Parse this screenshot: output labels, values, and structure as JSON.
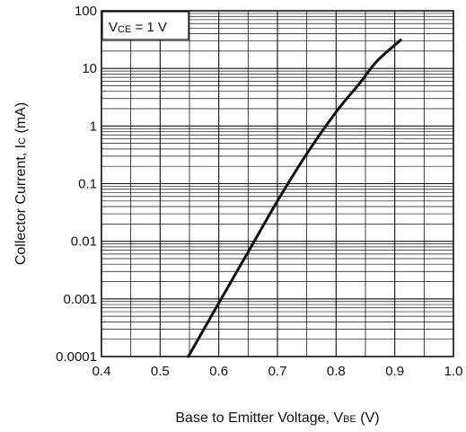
{
  "chart_data": {
    "type": "line",
    "xlabel": {
      "main": "Base to Emitter Voltage, V",
      "sub": "BE",
      "unit": "(V)"
    },
    "ylabel": {
      "main": "Collector Current, I",
      "sub": "C",
      "unit": "(mA)"
    },
    "xlim": [
      0.4,
      1.0
    ],
    "ylim": [
      0.0001,
      100
    ],
    "yscale": "log",
    "grid": true,
    "x_ticks": [
      {
        "value": 0.4,
        "label": "0.4"
      },
      {
        "value": 0.5,
        "label": "0.5"
      },
      {
        "value": 0.6,
        "label": "0.6"
      },
      {
        "value": 0.7,
        "label": "0.7"
      },
      {
        "value": 0.8,
        "label": "0.8"
      },
      {
        "value": 0.9,
        "label": "0.9"
      },
      {
        "value": 1.0,
        "label": "1.0"
      }
    ],
    "y_ticks": [
      {
        "value": 0.0001,
        "label": "0.0001"
      },
      {
        "value": 0.001,
        "label": "0.001"
      },
      {
        "value": 0.01,
        "label": "0.01"
      },
      {
        "value": 0.1,
        "label": "0.1"
      },
      {
        "value": 1,
        "label": "1"
      },
      {
        "value": 10,
        "label": "10"
      },
      {
        "value": 100,
        "label": "100"
      }
    ],
    "annotation": {
      "prefix": "V",
      "sub": "CE",
      "suffix": " = 1 V"
    },
    "series": [
      {
        "x": [
          0.548,
          0.6,
          0.65,
          0.7,
          0.75,
          0.8,
          0.84,
          0.87,
          0.91
        ],
        "y": [
          0.0001,
          0.00085,
          0.0065,
          0.05,
          0.33,
          1.75,
          5.5,
          13.5,
          31.0
        ]
      }
    ]
  }
}
